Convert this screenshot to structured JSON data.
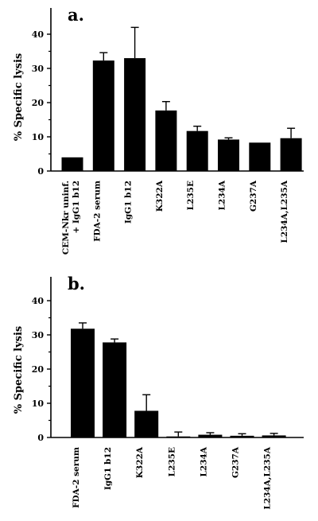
{
  "chart_data": [
    {
      "type": "bar",
      "title": "a.",
      "ylabel": "% Specific lysis",
      "xlabel": "",
      "ylim": [
        0,
        45
      ],
      "yticks": [
        0,
        10,
        20,
        30,
        40
      ],
      "categories": [
        [
          "CEM-Nkr uninf.",
          "+ IgG1 b12"
        ],
        [
          "FDA-2 serum"
        ],
        [
          "IgG1 b12"
        ],
        [
          "K322A"
        ],
        [
          "L235E"
        ],
        [
          "L234A"
        ],
        [
          "G237A"
        ],
        [
          "L234A,L235A"
        ]
      ],
      "values": [
        4,
        32.3,
        33,
        17.7,
        11.7,
        9.2,
        8.3,
        9.6
      ],
      "errors": [
        0,
        2.3,
        9,
        2.6,
        1.4,
        0.5,
        0,
        2.9
      ],
      "grid": false,
      "legend": "none",
      "bar_color": "#000000"
    },
    {
      "type": "bar",
      "title": "b.",
      "ylabel": "% Specific lysis",
      "xlabel": "",
      "ylim": [
        0,
        45
      ],
      "yticks": [
        0,
        10,
        20,
        30,
        40
      ],
      "categories": [
        [
          "FDA-2 serum"
        ],
        [
          "IgG1 b12"
        ],
        [
          "K322A"
        ],
        [
          "L235E"
        ],
        [
          "L234A"
        ],
        [
          "G237A"
        ],
        [
          "L234A,L235A"
        ]
      ],
      "values": [
        31.8,
        27.8,
        7.8,
        0.3,
        0.8,
        0.5,
        0.6
      ],
      "errors": [
        1.7,
        1.0,
        4.7,
        1.3,
        0.6,
        0.6,
        0.6
      ],
      "grid": false,
      "legend": "none",
      "bar_color": "#000000"
    }
  ]
}
